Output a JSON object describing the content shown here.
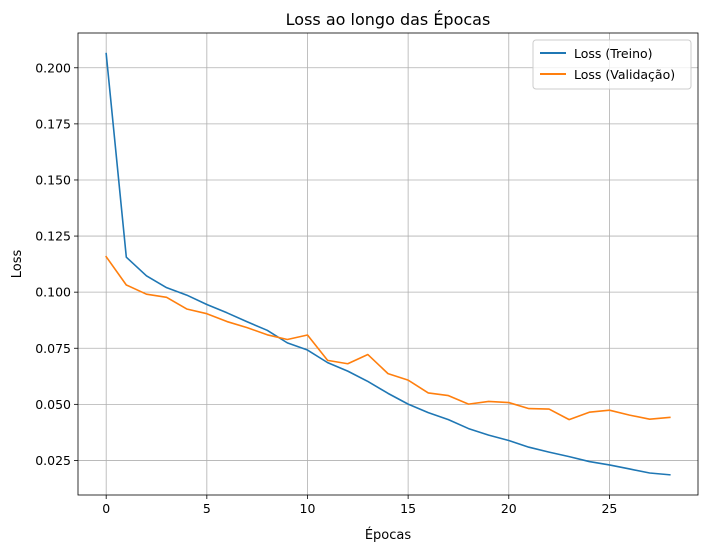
{
  "chart_data": {
    "type": "line",
    "title": "Loss ao longo das Épocas",
    "xlabel": "Épocas",
    "ylabel": "Loss",
    "xlim": [
      -1.4,
      29.4
    ],
    "ylim": [
      0.0096,
      0.2155
    ],
    "x_ticks": [
      0,
      5,
      10,
      15,
      20,
      25
    ],
    "y_ticks": [
      0.025,
      0.05,
      0.075,
      0.1,
      0.125,
      0.15,
      0.175,
      0.2
    ],
    "x_tick_labels": [
      "0",
      "5",
      "10",
      "15",
      "20",
      "25"
    ],
    "y_tick_labels": [
      "0.025",
      "0.050",
      "0.075",
      "0.100",
      "0.125",
      "0.150",
      "0.175",
      "0.200"
    ],
    "grid": true,
    "legend_position": "top-right",
    "x": [
      0,
      1,
      2,
      3,
      4,
      5,
      6,
      7,
      8,
      9,
      10,
      11,
      12,
      13,
      14,
      15,
      16,
      17,
      18,
      19,
      20,
      21,
      22,
      23,
      24,
      25,
      26,
      27,
      28
    ],
    "series": [
      {
        "name": "Loss (Treino)",
        "color": "#1f77b4",
        "values": [
          0.2063,
          0.1156,
          0.1073,
          0.102,
          0.0987,
          0.0945,
          0.0908,
          0.0868,
          0.083,
          0.0774,
          0.0742,
          0.0686,
          0.0648,
          0.0602,
          0.0549,
          0.0501,
          0.0463,
          0.0432,
          0.0392,
          0.0363,
          0.0339,
          0.0309,
          0.0287,
          0.0267,
          0.0245,
          0.023,
          0.0212,
          0.0194,
          0.0186
        ]
      },
      {
        "name": "Loss (Validação)",
        "color": "#ff7f0e",
        "values": [
          0.1158,
          0.1032,
          0.0991,
          0.0977,
          0.0925,
          0.0904,
          0.0869,
          0.0842,
          0.081,
          0.0789,
          0.0809,
          0.0696,
          0.0681,
          0.0722,
          0.0637,
          0.0608,
          0.0551,
          0.0539,
          0.0501,
          0.0513,
          0.0508,
          0.0481,
          0.0479,
          0.0432,
          0.0465,
          0.0474,
          0.0452,
          0.0434,
          0.0442
        ]
      }
    ]
  }
}
